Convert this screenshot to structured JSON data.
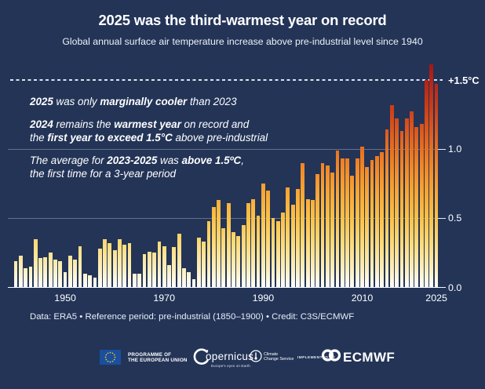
{
  "page": {
    "title": "2025 was the third-warmest year on record",
    "subtitle": "Global annual surface air temperature increase above pre-industrial level since 1940"
  },
  "chart_data": {
    "type": "bar",
    "title": "2025 was the third-warmest year on record",
    "subtitle": "Global annual surface air temperature increase above pre-industrial level since 1940",
    "unit": "°C above pre-industrial (1850–1900)",
    "year_start": 1940,
    "year_end": 2025,
    "ylim": [
      0,
      1.65
    ],
    "grid": "horizontal",
    "x_ticks": [
      1950,
      1970,
      1990,
      2010,
      2025
    ],
    "y_ticks": [
      {
        "label": "+1.5°C",
        "value": 1.5,
        "dashed": true
      },
      {
        "label": "1.0",
        "value": 1.0
      },
      {
        "label": "0.5",
        "value": 0.5
      },
      {
        "label": "0.0",
        "value": 0.0
      }
    ],
    "values": [
      0.19,
      0.23,
      0.14,
      0.15,
      0.35,
      0.21,
      0.22,
      0.25,
      0.2,
      0.19,
      0.11,
      0.23,
      0.2,
      0.3,
      0.1,
      0.09,
      0.07,
      0.28,
      0.35,
      0.32,
      0.27,
      0.35,
      0.31,
      0.32,
      0.1,
      0.1,
      0.24,
      0.26,
      0.25,
      0.33,
      0.3,
      0.16,
      0.29,
      0.39,
      0.14,
      0.11,
      0.06,
      0.36,
      0.33,
      0.48,
      0.58,
      0.63,
      0.43,
      0.61,
      0.4,
      0.37,
      0.45,
      0.61,
      0.64,
      0.52,
      0.75,
      0.7,
      0.5,
      0.48,
      0.54,
      0.72,
      0.6,
      0.71,
      0.9,
      0.64,
      0.63,
      0.82,
      0.9,
      0.88,
      0.83,
      0.99,
      0.93,
      0.93,
      0.81,
      0.93,
      1.02,
      0.87,
      0.92,
      0.95,
      0.98,
      1.14,
      1.32,
      1.22,
      1.13,
      1.22,
      1.27,
      1.16,
      1.18,
      1.5,
      1.61,
      1.47
    ],
    "color_scale": [
      [
        0.0,
        "#ffffff"
      ],
      [
        0.12,
        "#fcf0c3"
      ],
      [
        0.3,
        "#fedd7e"
      ],
      [
        0.5,
        "#fcc148"
      ],
      [
        0.7,
        "#f9a432"
      ],
      [
        0.9,
        "#f08224"
      ],
      [
        1.1,
        "#e05e1d"
      ],
      [
        1.3,
        "#cc3d18"
      ],
      [
        1.5,
        "#b42317"
      ],
      [
        1.65,
        "#9c1315"
      ]
    ]
  },
  "annotations": {
    "paragraphs": [
      {
        "lines": [
          [
            {
              "t": "2025",
              "b": true
            },
            {
              "t": " was only ",
              "b": false
            },
            {
              "t": "marginally cooler",
              "b": true
            },
            {
              "t": " than 2023",
              "b": false
            }
          ]
        ]
      },
      {
        "lines": [
          [
            {
              "t": "2024",
              "b": true
            },
            {
              "t": " remains the ",
              "b": false
            },
            {
              "t": "warmest year",
              "b": true
            },
            {
              "t": " on record and",
              "b": false
            }
          ],
          [
            {
              "t": "the ",
              "b": false
            },
            {
              "t": "first year to exceed 1.5°C",
              "b": true
            },
            {
              "t": " above pre-industrial",
              "b": false
            }
          ]
        ]
      },
      {
        "lines": [
          [
            {
              "t": "The average for ",
              "b": false
            },
            {
              "t": "2023-2025",
              "b": true
            },
            {
              "t": " was ",
              "b": false
            },
            {
              "t": "above 1.5ºC",
              "b": true
            },
            {
              "t": ",",
              "b": false
            }
          ],
          [
            {
              "t": "the first time for a 3-year period",
              "b": false
            }
          ]
        ]
      }
    ]
  },
  "footer": {
    "credit": "Data: ERA5 • Reference period: pre-industrial (1850–1900) • Credit: C3S/ECMWF"
  },
  "logos": {
    "eu": {
      "line1": "PROGRAMME OF",
      "line2": "THE EUROPEAN UNION"
    },
    "copernicus": {
      "name": "opernicus",
      "tagline": "Europe's eyes on Earth"
    },
    "climate": {
      "line1": "Climate",
      "line2": "Change Service"
    },
    "implemented_by": "IMPLEMENTED BY",
    "ecmwf": "ECMWF"
  },
  "colors": {
    "background": "#233457",
    "threshold_line": "#dce3ee",
    "bar_top_max": "#9c1315",
    "bar_mid": "#fcc148",
    "text": "#ffffff"
  }
}
